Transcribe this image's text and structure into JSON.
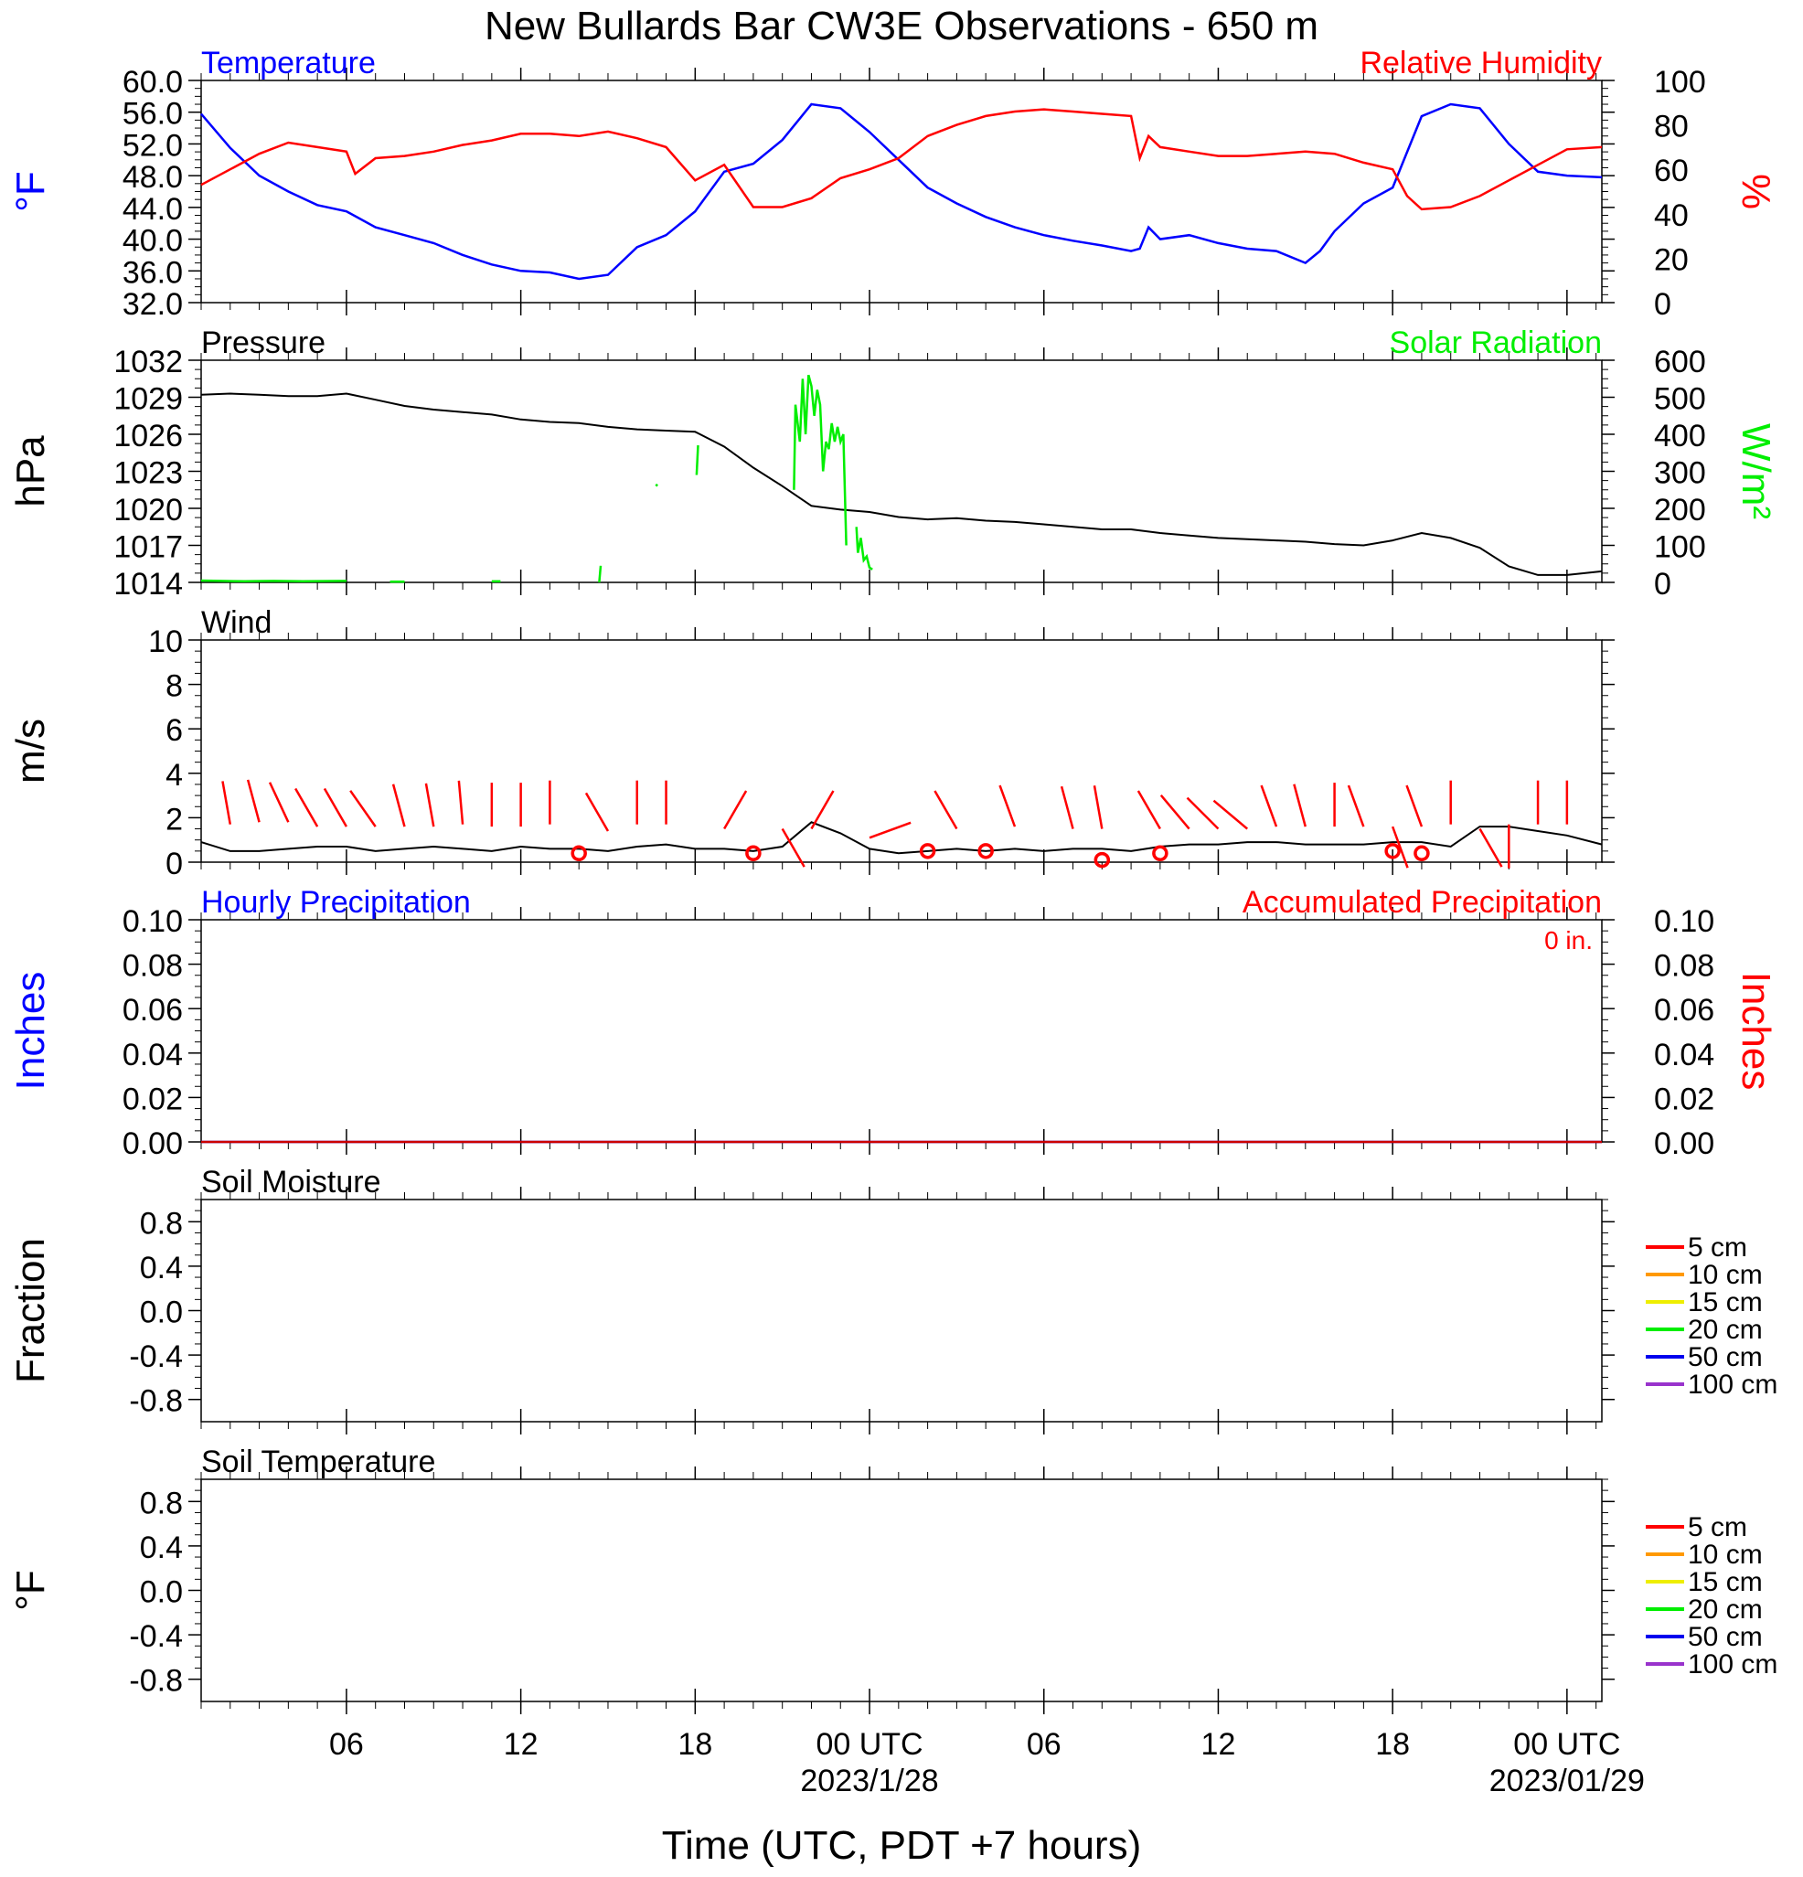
{
  "title": "New Bullards Bar CW3E Observations - 650 m",
  "x_axis": {
    "label": "Time (UTC, PDT +7 hours)",
    "tick_hours": [
      6,
      12,
      18,
      24,
      30,
      36,
      42,
      48
    ],
    "tick_labels": [
      "06",
      "12",
      "18",
      "00 UTC",
      "06",
      "12",
      "18",
      "00 UTC"
    ],
    "date_labels": [
      {
        "hour": 24,
        "text": "2023/1/28"
      },
      {
        "hour": 48,
        "text": "2023/01/29"
      }
    ],
    "range_hours": [
      1,
      49.2
    ]
  },
  "chart_data": [
    {
      "type": "line",
      "panel": "temperature_humidity",
      "title_left": "Temperature",
      "title_right": "Relative Humidity",
      "ylabel_left": "°F",
      "ylabel_right": "%",
      "ylim_left": [
        32,
        60
      ],
      "yticks_left": [
        32,
        36,
        40,
        44,
        48,
        52,
        56,
        60
      ],
      "yticks_left_labels": [
        "32.0",
        "36.0",
        "40.0",
        "44.0",
        "48.0",
        "52.0",
        "56.0",
        "60.0"
      ],
      "ylim_right": [
        0,
        100
      ],
      "yticks_right": [
        0,
        20,
        40,
        60,
        80,
        100
      ],
      "series": [
        {
          "name": "Temperature",
          "axis": "left",
          "color": "#0000ff",
          "x": [
            1,
            2,
            3,
            4,
            5,
            6,
            7,
            8,
            9,
            10,
            11,
            12,
            13,
            14,
            15,
            16,
            17,
            18,
            19,
            20,
            21,
            22,
            23,
            24,
            25,
            26,
            27,
            28,
            29,
            30,
            31,
            32,
            33,
            33.3,
            33.6,
            34,
            35,
            36,
            37,
            38,
            39,
            39.5,
            40,
            41,
            42,
            43,
            44,
            45,
            46,
            47,
            48,
            49.2
          ],
          "y": [
            55.8,
            51.5,
            48.0,
            46.0,
            44.3,
            43.5,
            41.5,
            40.5,
            39.5,
            38.0,
            36.8,
            36.0,
            35.8,
            35.0,
            35.5,
            39.0,
            40.5,
            43.5,
            48.5,
            49.5,
            52.5,
            57.0,
            56.5,
            53.5,
            50.0,
            46.5,
            44.5,
            42.8,
            41.5,
            40.5,
            39.8,
            39.2,
            38.5,
            38.8,
            41.5,
            40.0,
            40.5,
            39.5,
            38.8,
            38.5,
            37.0,
            38.5,
            41.0,
            44.5,
            46.5,
            55.5,
            57.0,
            56.5,
            52.0,
            48.5,
            48.0,
            47.8
          ]
        },
        {
          "name": "Relative Humidity",
          "axis": "right",
          "color": "#ff0000",
          "x": [
            1,
            2,
            3,
            4,
            5,
            6,
            6.3,
            7,
            8,
            9,
            10,
            11,
            12,
            13,
            14,
            15,
            16,
            17,
            18,
            19,
            20,
            21,
            22,
            23,
            24,
            25,
            26,
            27,
            28,
            29,
            30,
            31,
            32,
            33,
            33.3,
            33.6,
            34,
            35,
            36,
            37,
            38,
            39,
            40,
            41,
            42,
            42.5,
            43,
            44,
            45,
            46,
            47,
            48,
            49.2
          ],
          "y": [
            53,
            60,
            67,
            72,
            70,
            68,
            58,
            65,
            66,
            68,
            71,
            73,
            76,
            76,
            75,
            77,
            74,
            70,
            55,
            62,
            43,
            43,
            47,
            56,
            60,
            65,
            75,
            80,
            84,
            86,
            87,
            86,
            85,
            84,
            65,
            75,
            70,
            68,
            66,
            66,
            67,
            68,
            67,
            63,
            60,
            48,
            42,
            43,
            48,
            55,
            62,
            69,
            70
          ]
        }
      ]
    },
    {
      "type": "line",
      "panel": "pressure_solar",
      "title_left": "Pressure",
      "title_right": "Solar Radiation",
      "ylabel_left": "hPa",
      "ylabel_right": "W/m²",
      "ylim_left": [
        1014,
        1032
      ],
      "yticks_left": [
        1014,
        1017,
        1020,
        1023,
        1026,
        1029,
        1032
      ],
      "ylim_right": [
        0,
        600
      ],
      "yticks_right": [
        0,
        100,
        200,
        300,
        400,
        500,
        600
      ],
      "series": [
        {
          "name": "Pressure",
          "axis": "left",
          "color": "#000000",
          "x": [
            1,
            2,
            3,
            4,
            5,
            6,
            7,
            8,
            9,
            10,
            11,
            12,
            13,
            14,
            15,
            16,
            17,
            18,
            19,
            20,
            21,
            22,
            23,
            24,
            25,
            26,
            27,
            28,
            29,
            30,
            31,
            32,
            33,
            34,
            35,
            36,
            37,
            38,
            39,
            40,
            41,
            42,
            43,
            44,
            45,
            46,
            47,
            48,
            49.2
          ],
          "y": [
            1029.2,
            1029.3,
            1029.2,
            1029.1,
            1029.1,
            1029.3,
            1028.8,
            1028.3,
            1028.0,
            1027.8,
            1027.6,
            1027.2,
            1027.0,
            1026.9,
            1026.6,
            1026.4,
            1026.3,
            1026.2,
            1025.0,
            1023.3,
            1021.8,
            1020.2,
            1019.9,
            1019.7,
            1019.3,
            1019.1,
            1019.2,
            1019.0,
            1018.9,
            1018.7,
            1018.5,
            1018.3,
            1018.3,
            1018.0,
            1017.8,
            1017.6,
            1017.5,
            1017.4,
            1017.3,
            1017.1,
            1017.0,
            1017.4,
            1018.0,
            1017.6,
            1016.8,
            1015.3,
            1014.6,
            1014.6,
            1014.9
          ]
        },
        {
          "name": "Solar Radiation",
          "axis": "right",
          "color": "#00ee00",
          "segments": [
            {
              "x": [
                1,
                2.5,
                3.5,
                4.5,
                6
              ],
              "y": [
                5,
                3,
                4,
                3,
                4
              ]
            },
            {
              "x": [
                7.5,
                8
              ],
              "y": [
                2,
                2
              ]
            },
            {
              "x": [
                11,
                11.3
              ],
              "y": [
                3,
                3
              ]
            },
            {
              "x": [
                14.7,
                14.75
              ],
              "y": [
                0,
                45
              ]
            },
            {
              "x": [
                16.65,
                16.7
              ],
              "y": [
                260,
                265
              ]
            },
            {
              "x": [
                18.05,
                18.1
              ],
              "y": [
                290,
                370
              ]
            },
            {
              "x": [
                21.4,
                21.45,
                21.6,
                21.7,
                21.8,
                21.9,
                22.0,
                22.1,
                22.2,
                22.3,
                22.4,
                22.5,
                22.6,
                22.7,
                22.8,
                22.9,
                23.0,
                23.1,
                23.2
              ],
              "y": [
                250,
                480,
                380,
                550,
                400,
                560,
                530,
                450,
                520,
                480,
                300,
                380,
                360,
                430,
                380,
                420,
                380,
                400,
                100
              ]
            },
            {
              "x": [
                23.55,
                23.6,
                23.7,
                23.8,
                23.9,
                24.0,
                24.1
              ],
              "y": [
                150,
                80,
                120,
                60,
                70,
                40,
                35
              ]
            }
          ]
        }
      ]
    },
    {
      "type": "line",
      "panel": "wind",
      "title_left": "Wind",
      "ylabel_left": "m/s",
      "ylim_left": [
        0,
        10
      ],
      "yticks_left": [
        0,
        2,
        4,
        6,
        8,
        10
      ],
      "series": [
        {
          "name": "Wind speed",
          "axis": "left",
          "color": "#000000",
          "x": [
            1,
            2,
            3,
            4,
            5,
            6,
            7,
            8,
            9,
            10,
            11,
            12,
            13,
            14,
            15,
            16,
            17,
            18,
            19,
            20,
            21,
            22,
            23,
            24,
            25,
            26,
            27,
            28,
            29,
            30,
            31,
            32,
            33,
            34,
            35,
            36,
            37,
            38,
            39,
            40,
            41,
            42,
            43,
            44,
            45,
            46,
            47,
            48,
            49.2
          ],
          "y": [
            0.9,
            0.5,
            0.5,
            0.6,
            0.7,
            0.7,
            0.5,
            0.6,
            0.7,
            0.6,
            0.5,
            0.7,
            0.6,
            0.6,
            0.5,
            0.7,
            0.8,
            0.6,
            0.6,
            0.5,
            0.7,
            1.8,
            1.3,
            0.6,
            0.4,
            0.5,
            0.6,
            0.5,
            0.6,
            0.5,
            0.6,
            0.6,
            0.5,
            0.7,
            0.8,
            0.8,
            0.9,
            0.9,
            0.8,
            0.8,
            0.8,
            0.9,
            0.9,
            0.7,
            1.6,
            1.6,
            1.4,
            1.2,
            0.8
          ]
        },
        {
          "name": "Wind barbs",
          "marker": "barb",
          "color": "#ff0000",
          "x": [
            2,
            3,
            4,
            5,
            6,
            7,
            8,
            9,
            10,
            11,
            12,
            13,
            15,
            16,
            17,
            19,
            21,
            22,
            24,
            27,
            29,
            31,
            32,
            34,
            35,
            36,
            37,
            38,
            39,
            40,
            41,
            42,
            43,
            44,
            45,
            46,
            47,
            48
          ],
          "y": [
            1.7,
            1.8,
            1.8,
            1.6,
            1.6,
            1.6,
            1.6,
            1.6,
            1.7,
            1.6,
            1.6,
            1.7,
            1.4,
            1.7,
            1.7,
            1.5,
            1.5,
            1.5,
            1.1,
            1.5,
            1.6,
            1.5,
            1.5,
            1.5,
            1.5,
            1.5,
            1.5,
            1.6,
            1.6,
            1.6,
            1.6,
            1.6,
            1.6,
            1.7,
            1.5,
            1.7,
            1.7,
            1.7
          ],
          "dir_deg": [
            350,
            345,
            335,
            330,
            330,
            325,
            345,
            350,
            355,
            0,
            0,
            0,
            330,
            0,
            0,
            30,
            150,
            30,
            70,
            330,
            340,
            345,
            350,
            330,
            320,
            315,
            310,
            340,
            345,
            0,
            340,
            160,
            340,
            0,
            150,
            180,
            0,
            0
          ]
        },
        {
          "name": "Calm",
          "marker": "circle",
          "color": "#ff0000",
          "x": [
            14,
            20,
            26,
            28,
            32,
            34,
            42,
            43
          ],
          "y": [
            0.4,
            0.4,
            0.5,
            0.5,
            0.1,
            0.4,
            0.5,
            0.4
          ]
        }
      ]
    },
    {
      "type": "line",
      "panel": "precipitation",
      "title_left": "Hourly Precipitation",
      "title_right": "Accumulated Precipitation",
      "annotation": "0 in.",
      "ylabel_left": "Inches",
      "ylabel_right": "Inches",
      "ylim_left": [
        0,
        0.1
      ],
      "yticks_left": [
        0,
        0.02,
        0.04,
        0.06,
        0.08,
        0.1
      ],
      "yticks_left_labels": [
        "0.00",
        "0.02",
        "0.04",
        "0.06",
        "0.08",
        "0.10"
      ],
      "ylim_right": [
        0,
        0.1
      ],
      "series": [
        {
          "name": "Hourly Precipitation",
          "axis": "left",
          "color": "#0000ff",
          "x": [
            1,
            49.2
          ],
          "y": [
            0,
            0
          ]
        },
        {
          "name": "Accumulated Precipitation",
          "axis": "right",
          "color": "#cc0000",
          "x": [
            1,
            49.2
          ],
          "y": [
            0,
            0
          ]
        }
      ]
    },
    {
      "type": "line",
      "panel": "soil_moisture",
      "title_left": "Soil Moisture",
      "ylabel_left": "Fraction",
      "ylim_left": [
        -1,
        1
      ],
      "yticks_left": [
        -0.8,
        -0.4,
        0,
        0.4,
        0.8
      ],
      "yticks_left_labels": [
        "-0.8",
        "-0.4",
        "0.0",
        "0.4",
        "0.8"
      ],
      "legend": [
        {
          "label": "5 cm",
          "color": "#ff0000"
        },
        {
          "label": "10 cm",
          "color": "#ff9900"
        },
        {
          "label": "15 cm",
          "color": "#eeee00"
        },
        {
          "label": "20 cm",
          "color": "#00ee00"
        },
        {
          "label": "50 cm",
          "color": "#0000ee"
        },
        {
          "label": "100 cm",
          "color": "#9933cc"
        }
      ]
    },
    {
      "type": "line",
      "panel": "soil_temperature",
      "title_left": "Soil Temperature",
      "ylabel_left": "°F",
      "ylim_left": [
        -1,
        1
      ],
      "yticks_left": [
        -0.8,
        -0.4,
        0,
        0.4,
        0.8
      ],
      "yticks_left_labels": [
        "-0.8",
        "-0.4",
        "0.0",
        "0.4",
        "0.8"
      ],
      "legend": [
        {
          "label": "5 cm",
          "color": "#ff0000"
        },
        {
          "label": "10 cm",
          "color": "#ff9900"
        },
        {
          "label": "15 cm",
          "color": "#eeee00"
        },
        {
          "label": "20 cm",
          "color": "#00ee00"
        },
        {
          "label": "50 cm",
          "color": "#0000ee"
        },
        {
          "label": "100 cm",
          "color": "#9933cc"
        }
      ]
    }
  ]
}
